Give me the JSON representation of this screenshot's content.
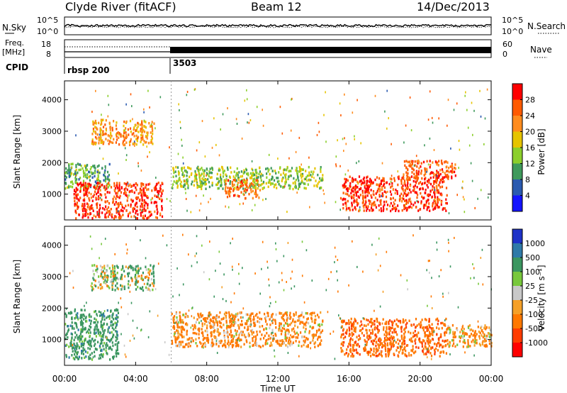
{
  "header": {
    "station": "Clyde River (fitACF)",
    "beam": "Beam 12",
    "date": "14/Dec/2013"
  },
  "noise_panel": {
    "left_label": "N.Sky",
    "right_label": "N.Search",
    "left_ticks": [
      "10^5",
      "10^0"
    ],
    "right_ticks": [
      "10^5",
      "10^0"
    ]
  },
  "freq_panel": {
    "left_label_top": "Freq.",
    "left_label_unit": "[MHz]",
    "right_label": "Nave",
    "left_ticks": [
      "18",
      "8"
    ],
    "right_ticks": [
      "60",
      "0"
    ]
  },
  "cpid_panel": {
    "label": "CPID",
    "entries": [
      "rbsp 200",
      "3503"
    ]
  },
  "power_panel": {
    "ylabel": "Slant Range [km]",
    "yticks": [
      "4000",
      "3000",
      "2000",
      "1000"
    ],
    "colorbar_label": "Power [dB]",
    "colorbar_ticks": [
      "28",
      "24",
      "20",
      "16",
      "12",
      "8",
      "4"
    ],
    "colorbar_colors": [
      "#ff0000",
      "#ff5a00",
      "#ff8c1e",
      "#e6c400",
      "#8ccf2c",
      "#3f9a5c",
      "#2a5ab0",
      "#1414ff"
    ]
  },
  "velocity_panel": {
    "ylabel": "Slant Range [km]",
    "yticks": [
      "4000",
      "3000",
      "2000",
      "1000"
    ],
    "colorbar_label": "Velocity [m s⁻¹]",
    "colorbar_ticks": [
      "1000",
      "500",
      "100",
      "25",
      "-25",
      "-100",
      "-500",
      "-1000"
    ],
    "colorbar_colors": [
      "#1e32c8",
      "#2f7aa8",
      "#3b9660",
      "#78c83c",
      "#c8c8c8",
      "#f5a028",
      "#ff7800",
      "#ff3c00",
      "#ff0000"
    ]
  },
  "xaxis": {
    "title": "Time UT",
    "ticks": [
      "00:00",
      "04:00",
      "08:00",
      "12:00",
      "16:00",
      "20:00",
      "00:00"
    ]
  },
  "chart_data": {
    "type": "heatmap",
    "x_range_hours": [
      0,
      24
    ],
    "y_range_km": [
      180,
      4600
    ],
    "cpid_change_hour": 6.0,
    "power_regions": [
      {
        "t0": 0.0,
        "t1": 2.5,
        "r0": 1200,
        "r1": 2000,
        "db": 12
      },
      {
        "t0": 0.5,
        "t1": 5.5,
        "r0": 250,
        "r1": 1400,
        "db": 28
      },
      {
        "t0": 1.5,
        "t1": 5.0,
        "r0": 2600,
        "r1": 3400,
        "db": 22
      },
      {
        "t0": 6.0,
        "t1": 14.5,
        "r0": 1200,
        "r1": 1900,
        "db": 14
      },
      {
        "t0": 9.0,
        "t1": 11.0,
        "r0": 900,
        "r1": 1500,
        "db": 24
      },
      {
        "t0": 15.5,
        "t1": 21.5,
        "r0": 500,
        "r1": 1600,
        "db": 28
      },
      {
        "t0": 19.0,
        "t1": 22.0,
        "r0": 1500,
        "r1": 2100,
        "db": 26
      }
    ],
    "velocity_regions": [
      {
        "t0": 0.0,
        "t1": 3.0,
        "r0": 400,
        "r1": 2000,
        "v": 300
      },
      {
        "t0": 1.5,
        "t1": 5.0,
        "r0": 2600,
        "r1": 3400,
        "v": 100
      },
      {
        "t0": 6.0,
        "t1": 14.5,
        "r0": 800,
        "r1": 1900,
        "v": -200
      },
      {
        "t0": 15.5,
        "t1": 21.5,
        "r0": 500,
        "r1": 1700,
        "v": -400
      },
      {
        "t0": 21.5,
        "t1": 24.0,
        "r0": 800,
        "r1": 1500,
        "v": -150
      }
    ]
  }
}
